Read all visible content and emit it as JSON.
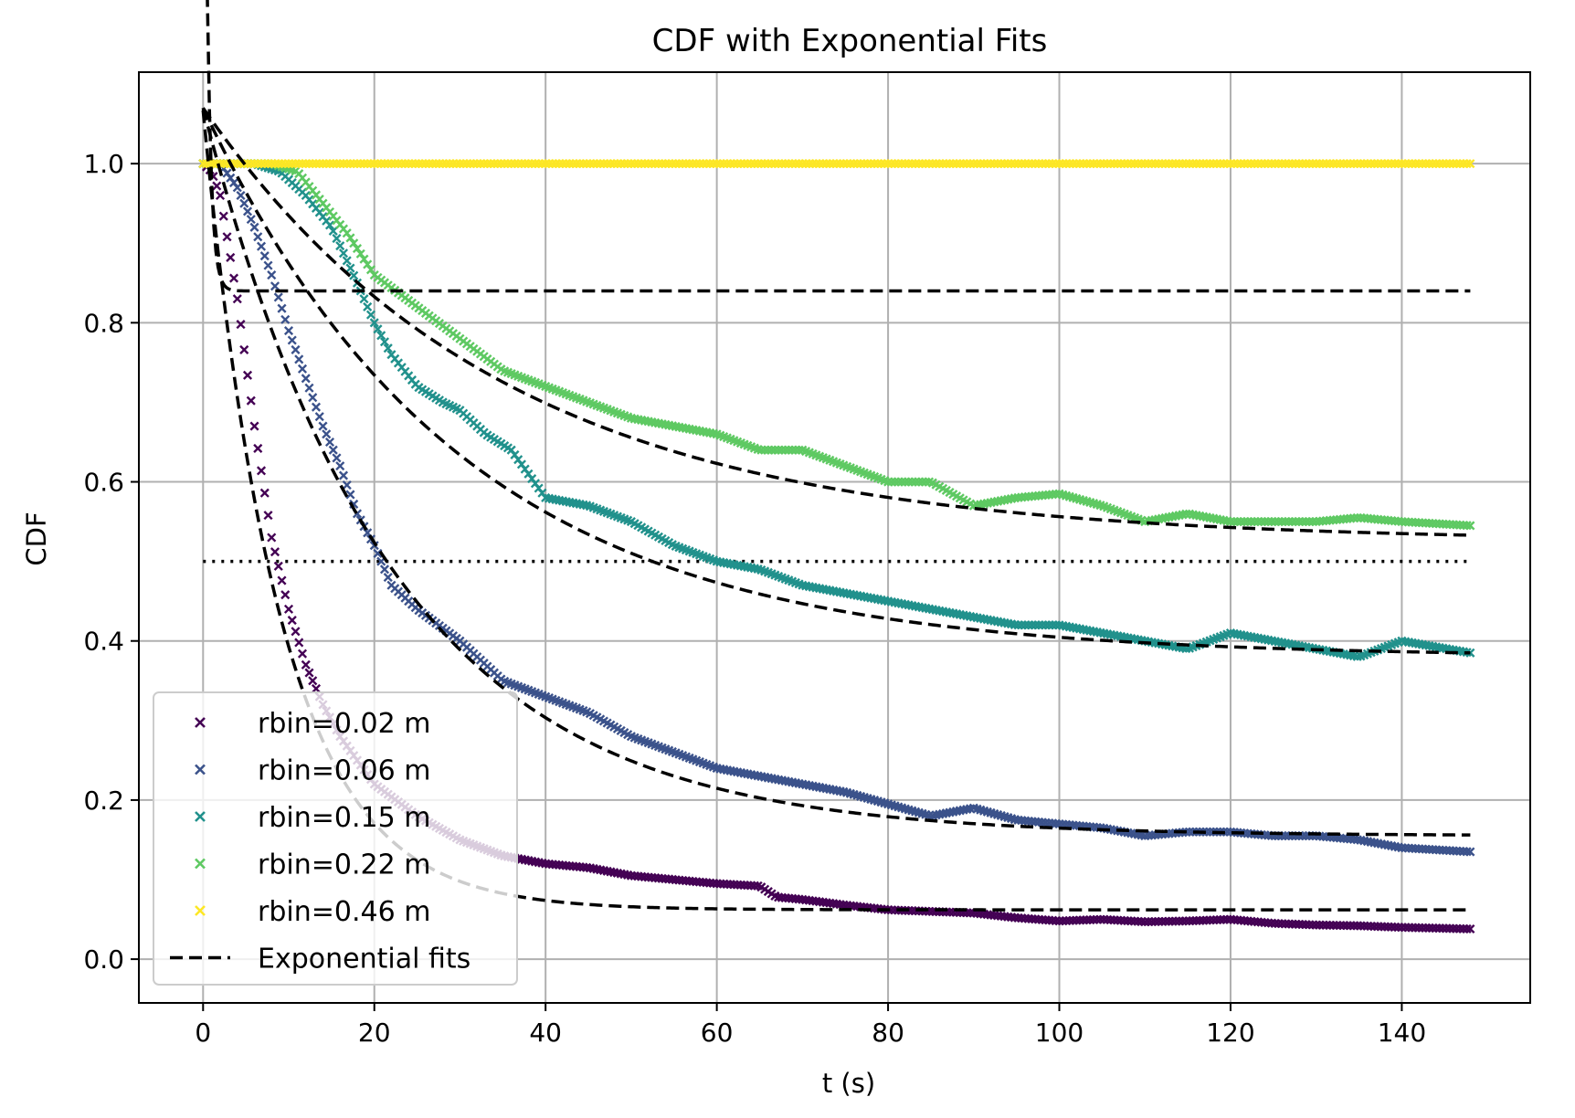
{
  "chart_data": {
    "type": "scatter",
    "title": "CDF with Exponential Fits",
    "xlabel": "t (s)",
    "ylabel": "CDF",
    "xlim": [
      -7.5,
      155
    ],
    "ylim": [
      -0.055,
      1.115
    ],
    "xticks": [
      0,
      20,
      40,
      60,
      80,
      100,
      120,
      140
    ],
    "yticks": [
      0.0,
      0.2,
      0.4,
      0.6,
      0.8,
      1.0
    ],
    "xtick_labels": [
      "0",
      "20",
      "40",
      "60",
      "80",
      "100",
      "120",
      "140"
    ],
    "ytick_labels": [
      "0.0",
      "0.2",
      "0.4",
      "0.6",
      "0.8",
      "1.0"
    ],
    "grid": true,
    "legend_position": "lower-left",
    "reference_line": {
      "y": 0.5,
      "x_range": [
        0,
        148
      ],
      "style": "dotted"
    },
    "series": [
      {
        "name": "rbin=0.02 m",
        "color": "#440154",
        "marker": "x",
        "x": [
          0,
          1,
          2,
          4,
          6,
          8,
          10,
          12,
          14,
          16,
          18,
          20,
          25,
          30,
          35,
          40,
          45,
          50,
          55,
          60,
          65,
          67,
          70,
          75,
          80,
          85,
          90,
          95,
          100,
          105,
          110,
          115,
          120,
          125,
          130,
          135,
          140,
          148
        ],
        "y": [
          1.0,
          0.99,
          0.96,
          0.83,
          0.67,
          0.53,
          0.44,
          0.37,
          0.32,
          0.28,
          0.25,
          0.22,
          0.18,
          0.15,
          0.13,
          0.12,
          0.115,
          0.105,
          0.1,
          0.095,
          0.092,
          0.078,
          0.075,
          0.068,
          0.062,
          0.06,
          0.058,
          0.052,
          0.048,
          0.05,
          0.047,
          0.048,
          0.05,
          0.045,
          0.043,
          0.042,
          0.04,
          0.038
        ]
      },
      {
        "name": "rbin=0.06 m",
        "color": "#3b528b",
        "marker": "x",
        "x": [
          0,
          2,
          4,
          6,
          8,
          10,
          12,
          14,
          16,
          18,
          20,
          22,
          25,
          30,
          35,
          40,
          45,
          50,
          55,
          60,
          65,
          70,
          75,
          80,
          85,
          90,
          95,
          100,
          105,
          110,
          115,
          120,
          125,
          130,
          135,
          140,
          148
        ],
        "y": [
          1.0,
          1.0,
          0.97,
          0.92,
          0.86,
          0.79,
          0.73,
          0.67,
          0.62,
          0.56,
          0.52,
          0.47,
          0.44,
          0.4,
          0.35,
          0.33,
          0.31,
          0.28,
          0.26,
          0.24,
          0.23,
          0.22,
          0.21,
          0.195,
          0.18,
          0.19,
          0.175,
          0.17,
          0.165,
          0.155,
          0.16,
          0.16,
          0.155,
          0.155,
          0.15,
          0.14,
          0.135
        ]
      },
      {
        "name": "rbin=0.15 m",
        "color": "#21918c",
        "marker": "x",
        "x": [
          0,
          3,
          6,
          9,
          12,
          15,
          18,
          20,
          22,
          25,
          28,
          30,
          33,
          36,
          40,
          45,
          50,
          55,
          60,
          65,
          70,
          75,
          80,
          85,
          90,
          95,
          100,
          105,
          110,
          115,
          120,
          125,
          130,
          135,
          140,
          148
        ],
        "y": [
          1.0,
          1.0,
          1.0,
          0.99,
          0.96,
          0.92,
          0.85,
          0.8,
          0.76,
          0.72,
          0.7,
          0.69,
          0.66,
          0.64,
          0.58,
          0.57,
          0.55,
          0.52,
          0.5,
          0.49,
          0.47,
          0.46,
          0.45,
          0.44,
          0.43,
          0.42,
          0.42,
          0.41,
          0.4,
          0.39,
          0.41,
          0.4,
          0.39,
          0.38,
          0.4,
          0.385
        ]
      },
      {
        "name": "rbin=0.22 m",
        "color": "#5ec962",
        "marker": "x",
        "x": [
          0,
          4,
          8,
          11,
          14,
          17,
          20,
          25,
          30,
          35,
          40,
          45,
          50,
          55,
          60,
          65,
          70,
          75,
          80,
          85,
          90,
          95,
          100,
          105,
          110,
          115,
          120,
          125,
          130,
          135,
          140,
          148
        ],
        "y": [
          1.0,
          1.0,
          1.0,
          0.99,
          0.95,
          0.91,
          0.86,
          0.82,
          0.78,
          0.74,
          0.72,
          0.7,
          0.68,
          0.67,
          0.66,
          0.64,
          0.64,
          0.62,
          0.6,
          0.6,
          0.57,
          0.58,
          0.585,
          0.57,
          0.55,
          0.56,
          0.55,
          0.55,
          0.55,
          0.555,
          0.55,
          0.545
        ]
      },
      {
        "name": "rbin=0.46 m",
        "color": "#fde725",
        "marker": "x",
        "x": [
          0,
          20,
          40,
          60,
          80,
          100,
          120,
          148
        ],
        "y": [
          1.0,
          1.0,
          1.0,
          1.0,
          1.0,
          1.0,
          1.0,
          1.0
        ]
      }
    ],
    "fits": {
      "name": "Exponential fits",
      "color": "#000000",
      "style": "dashed",
      "curves": [
        {
          "A": 1.0,
          "tau": 0.5,
          "C": 0.84
        },
        {
          "A": 1.005,
          "tau": 9.0,
          "C": 0.062
        },
        {
          "A": 0.915,
          "tau": 22.0,
          "C": 0.155
        },
        {
          "A": 0.69,
          "tau": 30.0,
          "C": 0.38
        },
        {
          "A": 0.545,
          "tau": 35.0,
          "C": 0.525
        }
      ]
    },
    "legend": [
      "rbin=0.02 m",
      "rbin=0.06 m",
      "rbin=0.15 m",
      "rbin=0.22 m",
      "rbin=0.46 m",
      "Exponential fits"
    ]
  }
}
